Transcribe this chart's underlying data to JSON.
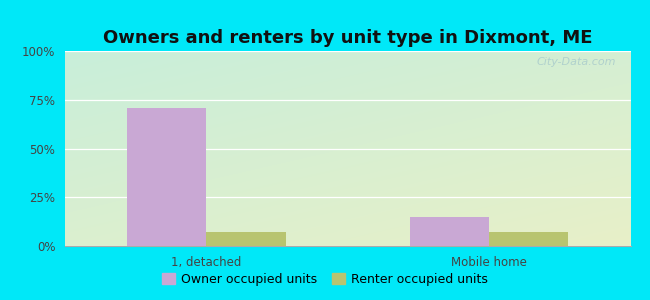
{
  "title": "Owners and renters by unit type in Dixmont, ME",
  "categories": [
    "1, detached",
    "Mobile home"
  ],
  "owner_values": [
    71,
    15
  ],
  "renter_values": [
    7,
    7
  ],
  "owner_color": "#c9a8d4",
  "renter_color": "#b8c470",
  "ylim": [
    0,
    100
  ],
  "yticks": [
    0,
    25,
    50,
    75,
    100
  ],
  "ytick_labels": [
    "0%",
    "25%",
    "50%",
    "75%",
    "100%"
  ],
  "bg_outer": "#00e8f8",
  "bg_top_left": "#c8eeda",
  "bg_bottom_right": "#e8f0c8",
  "bar_width": 0.28,
  "x_positions": [
    0.5,
    1.5
  ],
  "x_lim": [
    0,
    2.0
  ],
  "title_fontsize": 13,
  "legend_fontsize": 9,
  "tick_fontsize": 8.5,
  "watermark": "City-Data.com"
}
